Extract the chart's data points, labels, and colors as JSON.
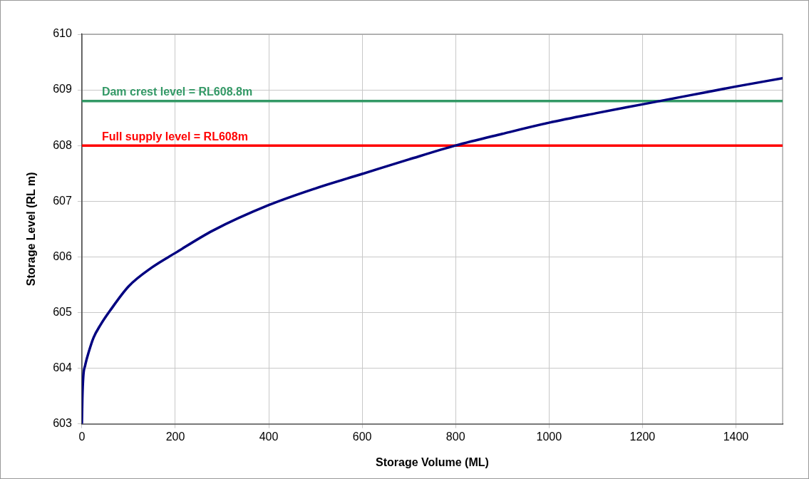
{
  "chart_data": {
    "type": "line",
    "xlabel": "Storage Volume (ML)",
    "ylabel": "Storage Level (RL m)",
    "x": [
      0,
      1,
      3,
      7,
      15,
      25,
      40,
      60,
      100,
      150,
      200,
      280,
      400,
      500,
      600,
      700,
      800,
      900,
      1000,
      1100,
      1200,
      1300,
      1400,
      1500
    ],
    "series": [
      {
        "color": "#000080",
        "values": [
          603.0,
          603.45,
          603.85,
          604.05,
          604.3,
          604.55,
          604.78,
          605.03,
          605.47,
          605.81,
          606.07,
          606.47,
          606.93,
          607.23,
          607.49,
          607.75,
          608.0,
          608.21,
          608.41,
          608.58,
          608.74,
          608.9,
          609.06,
          609.21
        ]
      }
    ],
    "xlim": [
      0,
      1500
    ],
    "xticks": [
      0,
      200,
      400,
      600,
      800,
      1000,
      1200,
      1400
    ],
    "ylim": [
      603,
      610
    ],
    "yticks": [
      603,
      604,
      605,
      606,
      607,
      608,
      609,
      610
    ],
    "ref_lines": [
      {
        "axis": "y",
        "value": 608.8,
        "label": "Dam crest level = RL608.8m",
        "color": "#339966"
      },
      {
        "axis": "y",
        "value": 608,
        "label": "Full supply level = RL608m",
        "color": "#ff0000"
      }
    ],
    "grid": true,
    "legend": false,
    "marker": "none",
    "line_style": "solid"
  }
}
